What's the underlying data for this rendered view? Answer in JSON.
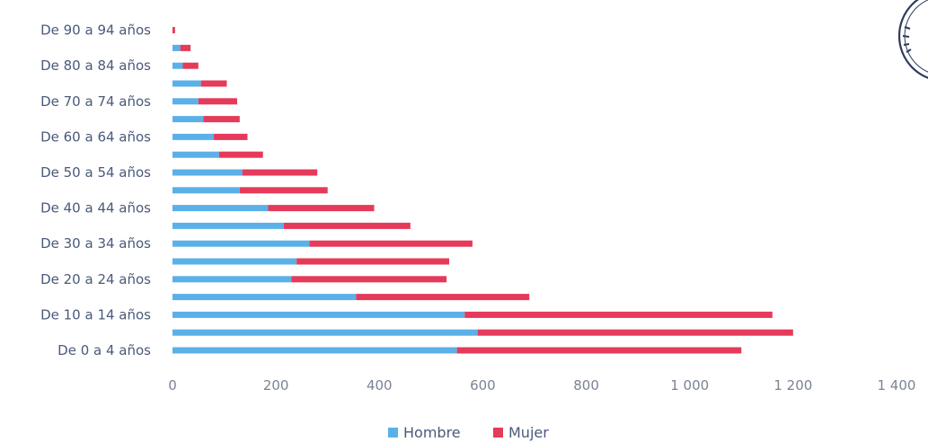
{
  "chart_data": {
    "type": "bar",
    "orientation": "horizontal",
    "stacked": true,
    "categories": [
      "De 0  a 4 años",
      "",
      "De 10 a 14 años",
      "",
      "De 20 a 24 años",
      "",
      "De 30 a 34 años",
      "",
      "De 40 a 44 años",
      "",
      "De 50 a 54 años",
      "",
      "De 60 a 64 años",
      "",
      "De 70 a 74 años",
      "",
      "De 80 a 84 años",
      "",
      "De 90 a 94 años"
    ],
    "series": [
      {
        "name": "Hombre",
        "color": "#5bb0e8",
        "values": [
          550,
          590,
          565,
          355,
          230,
          240,
          265,
          215,
          185,
          130,
          135,
          90,
          80,
          60,
          50,
          55,
          20,
          15,
          0
        ]
      },
      {
        "name": "Mujer",
        "color": "#e63a5a",
        "values": [
          550,
          610,
          595,
          335,
          300,
          295,
          315,
          245,
          205,
          170,
          145,
          85,
          65,
          70,
          75,
          50,
          30,
          20,
          5
        ]
      }
    ],
    "xlim": [
      0,
      1400
    ],
    "xticks": [
      0,
      200,
      400,
      600,
      800,
      1000,
      1200,
      1400
    ],
    "xtick_labels": [
      "0",
      "200",
      "400",
      "600",
      "800",
      "1 000",
      "1 200",
      "1 400"
    ],
    "grid": false,
    "legend_position": "bottom"
  }
}
